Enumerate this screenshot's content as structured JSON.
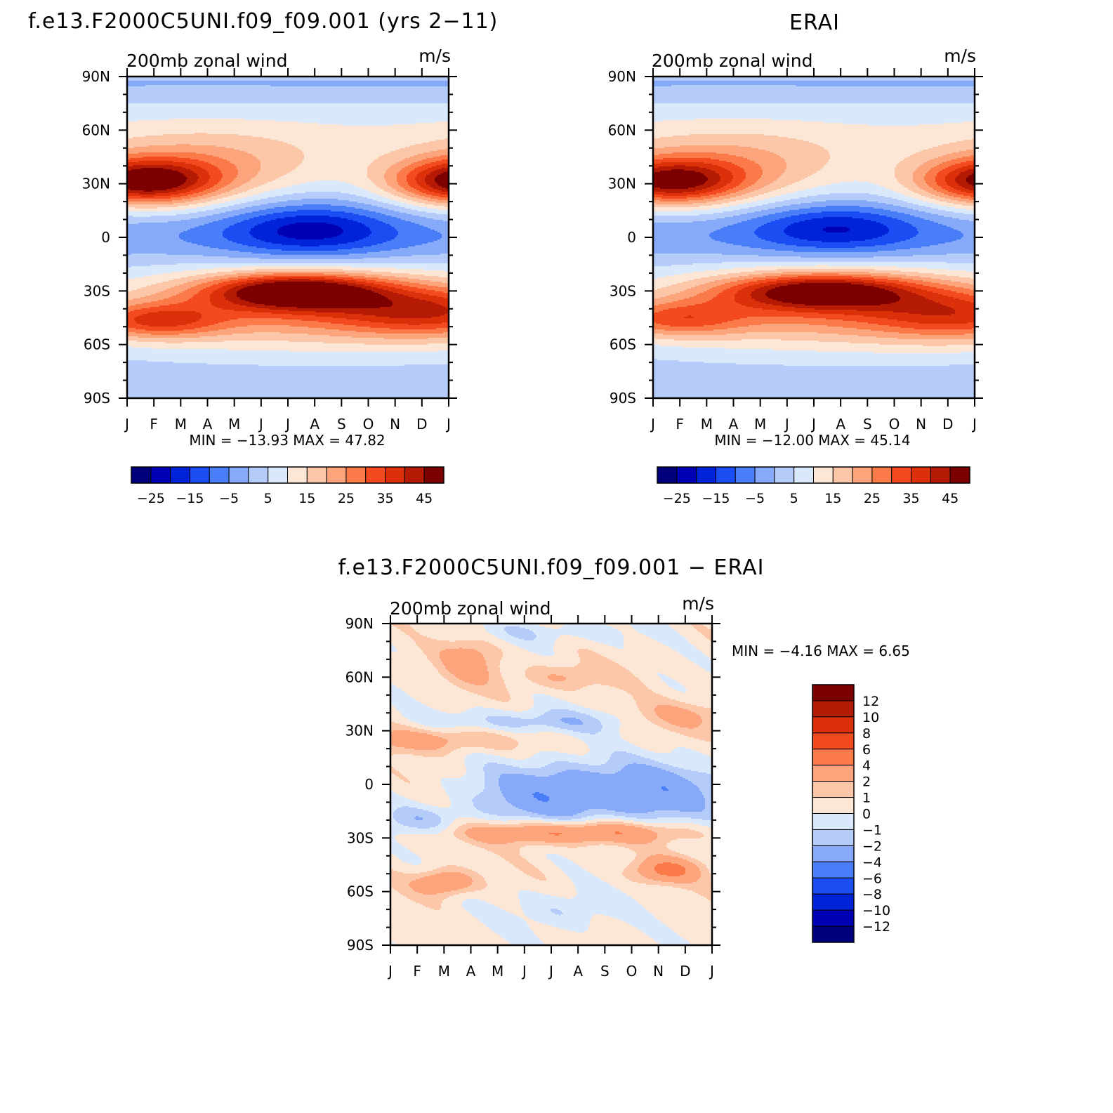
{
  "panels": {
    "model": {
      "title": "f.e13.F2000C5UNI.f09_f09.001 (yrs 2−11)",
      "subtitle_left": "200mb zonal wind",
      "subtitle_right": "m/s",
      "stats": "MIN = −13.93 MAX =   47.82"
    },
    "obs": {
      "title": "ERAI",
      "subtitle_left": "200mb zonal wind",
      "subtitle_right": "m/s",
      "stats": "MIN = −12.00 MAX =   45.14"
    },
    "diff": {
      "title": "f.e13.F2000C5UNI.f09_f09.001 − ERAI",
      "subtitle_left": "200mb zonal wind",
      "subtitle_right": "m/s",
      "stats": "MIN =   −4.16 MAX =    6.65"
    }
  },
  "axes": {
    "lat_labels": [
      "90N",
      "60N",
      "30N",
      "0",
      "30S",
      "60S",
      "90S"
    ],
    "month_labels": [
      "J",
      "F",
      "M",
      "A",
      "M",
      "J",
      "J",
      "A",
      "S",
      "O",
      "N",
      "D",
      "J"
    ]
  },
  "colorbars": {
    "main": {
      "colors": [
        "#00007d",
        "#0000b4",
        "#0022d8",
        "#1a4ef2",
        "#4a7ef8",
        "#86aaf9",
        "#b5ccfa",
        "#d9e8fb",
        "#fce6d5",
        "#fcc6a8",
        "#fca47c",
        "#fb7a4a",
        "#f44a20",
        "#dc300a",
        "#b41a04",
        "#7c0000"
      ],
      "labels": [
        "−25",
        "−15",
        "−5",
        "5",
        "15",
        "25",
        "35",
        "45"
      ]
    },
    "diff": {
      "colors": [
        "#7c0000",
        "#b41a04",
        "#dc300a",
        "#f44a20",
        "#fb7a4a",
        "#fca47c",
        "#fcc6a8",
        "#fce6d5",
        "#d9e8fb",
        "#b5ccfa",
        "#86aaf9",
        "#4a7ef8",
        "#1a4ef2",
        "#0022d8",
        "#0000b4",
        "#00007d"
      ],
      "labels": [
        "12",
        "10",
        "8",
        "6",
        "4",
        "2",
        "1",
        "0",
        "−1",
        "−2",
        "−4",
        "−6",
        "−8",
        "−10",
        "−12"
      ]
    }
  },
  "chart_data": [
    {
      "type": "heatmap",
      "title": "f.e13.F2000C5UNI.f09_f09.001 (yrs 2−11)",
      "subtitle": "200mb zonal wind",
      "units": "m/s",
      "x": [
        "J",
        "F",
        "M",
        "A",
        "M",
        "J",
        "J",
        "A",
        "S",
        "O",
        "N",
        "D",
        "J"
      ],
      "y": [
        "90N",
        "60N",
        "30N",
        "0",
        "30S",
        "60S",
        "90S"
      ],
      "min": -13.93,
      "max": 47.82,
      "levels": [
        -30,
        -25,
        -20,
        -15,
        -10,
        -5,
        0,
        5,
        10,
        15,
        20,
        25,
        30,
        35,
        40,
        45,
        50
      ]
    },
    {
      "type": "heatmap",
      "title": "ERAI",
      "subtitle": "200mb zonal wind",
      "units": "m/s",
      "x": [
        "J",
        "F",
        "M",
        "A",
        "M",
        "J",
        "J",
        "A",
        "S",
        "O",
        "N",
        "D",
        "J"
      ],
      "y": [
        "90N",
        "60N",
        "30N",
        "0",
        "30S",
        "60S",
        "90S"
      ],
      "min": -12.0,
      "max": 45.14,
      "levels": [
        -30,
        -25,
        -20,
        -15,
        -10,
        -5,
        0,
        5,
        10,
        15,
        20,
        25,
        30,
        35,
        40,
        45,
        50
      ]
    },
    {
      "type": "heatmap",
      "title": "f.e13.F2000C5UNI.f09_f09.001 − ERAI",
      "subtitle": "200mb zonal wind",
      "units": "m/s",
      "x": [
        "J",
        "F",
        "M",
        "A",
        "M",
        "J",
        "J",
        "A",
        "S",
        "O",
        "N",
        "D",
        "J"
      ],
      "y": [
        "90N",
        "60N",
        "30N",
        "0",
        "30S",
        "60S",
        "90S"
      ],
      "min": -4.16,
      "max": 6.65,
      "levels": [
        -14,
        -12,
        -10,
        -8,
        -6,
        -4,
        -2,
        -1,
        0,
        1,
        2,
        4,
        6,
        8,
        10,
        12,
        14
      ]
    }
  ]
}
